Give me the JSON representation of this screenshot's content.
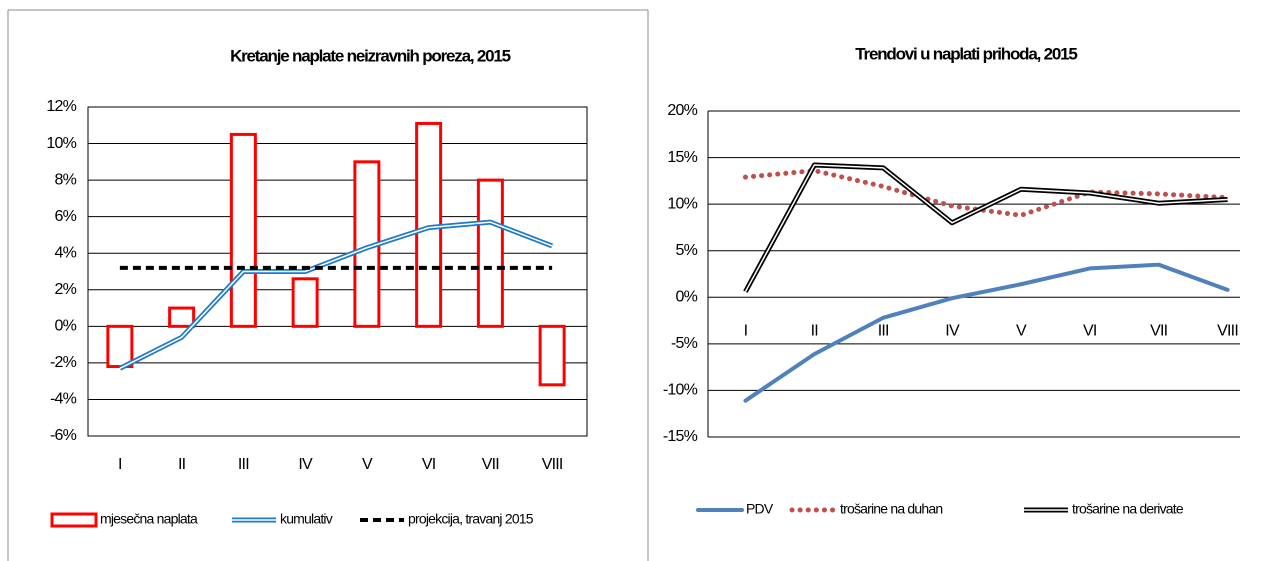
{
  "chart_data": [
    {
      "type": "bar",
      "title": "Kretanje naplate neizravnih poreza,  2015",
      "categories": [
        "I",
        "II",
        "III",
        "IV",
        "V",
        "VI",
        "VII",
        "VIII"
      ],
      "ylim": [
        -6,
        12
      ],
      "yticks": [
        {
          "value": -6,
          "label": "-6%"
        },
        {
          "value": -4,
          "label": "-4%"
        },
        {
          "value": -2,
          "label": "-2%"
        },
        {
          "value": 0,
          "label": "0%"
        },
        {
          "value": 2,
          "label": "2%"
        },
        {
          "value": 4,
          "label": "4%"
        },
        {
          "value": 6,
          "label": "6%"
        },
        {
          "value": 8,
          "label": "8%"
        },
        {
          "value": 10,
          "label": "10%"
        },
        {
          "value": 12,
          "label": "12%"
        }
      ],
      "grid": true,
      "series": [
        {
          "name": "mjesečna naplata",
          "type": "bar",
          "color": "#ff0000",
          "values": [
            -2.2,
            1.0,
            10.5,
            2.6,
            9.0,
            11.1,
            8.0,
            -3.2
          ]
        },
        {
          "name": "kumulativ",
          "type": "line",
          "line_style": "double",
          "color": "#1f7ac8",
          "values": [
            -2.3,
            -0.6,
            3.0,
            3.0,
            4.3,
            5.4,
            5.7,
            4.4
          ]
        },
        {
          "name": "projekcija, travanj 2015",
          "type": "line",
          "line_style": "dashed",
          "color": "#000000",
          "values": [
            3.2,
            3.2,
            3.2,
            3.2,
            3.2,
            3.2,
            3.2,
            3.2
          ]
        }
      ]
    },
    {
      "type": "line",
      "title": "Trendovi u naplati prihoda, 2015",
      "categories": [
        "I",
        "II",
        "III",
        "IV",
        "V",
        "VI",
        "VII",
        "VIII"
      ],
      "ylim": [
        -15,
        20
      ],
      "yticks": [
        {
          "value": -15,
          "label": "-15%"
        },
        {
          "value": -10,
          "label": "-10%"
        },
        {
          "value": -5,
          "label": "-5%"
        },
        {
          "value": 0,
          "label": "0%"
        },
        {
          "value": 5,
          "label": "5%"
        },
        {
          "value": 10,
          "label": "10%"
        },
        {
          "value": 15,
          "label": "15%"
        },
        {
          "value": 20,
          "label": "20%"
        }
      ],
      "grid": true,
      "series": [
        {
          "name": "PDV",
          "type": "line",
          "line_style": "solid",
          "color": "#4f81bd",
          "values": [
            -11.1,
            -6.1,
            -2.2,
            -0.1,
            1.4,
            3.1,
            3.5,
            0.8
          ]
        },
        {
          "name": "trošarine na duhan",
          "type": "line",
          "line_style": "dotted",
          "color": "#c0504d",
          "values": [
            12.9,
            13.6,
            11.9,
            9.8,
            8.8,
            11.3,
            11.1,
            10.7
          ]
        },
        {
          "name": "trošarine na derivate",
          "type": "line",
          "line_style": "double",
          "color": "#000000",
          "values": [
            0.6,
            14.2,
            13.9,
            8.0,
            11.6,
            11.2,
            10.1,
            10.5
          ]
        }
      ]
    }
  ]
}
